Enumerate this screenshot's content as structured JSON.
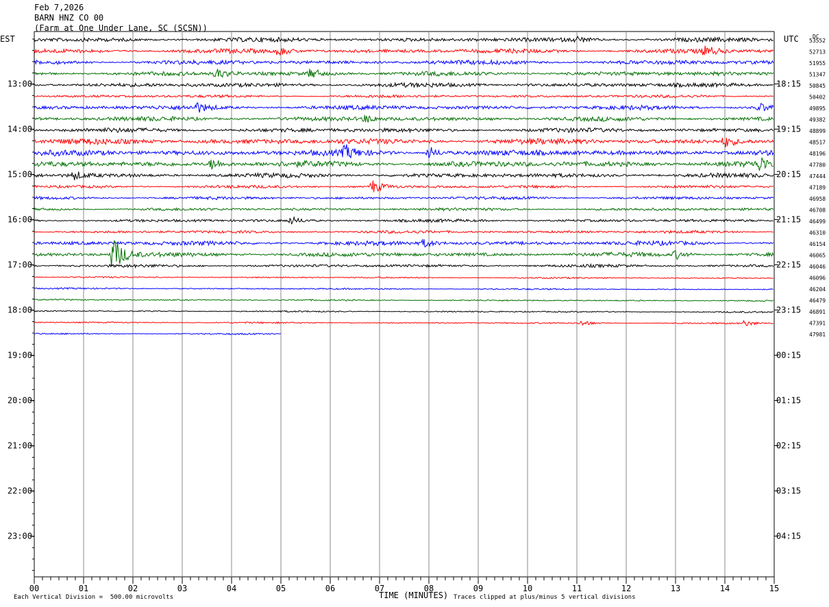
{
  "header": {
    "date": "Feb 7,2026",
    "station": "BARN HNZ CO 00",
    "location": "(Farm at One Under Lane, SC (SCSN))"
  },
  "left_axis_label": "EST",
  "right_axis_label": "UTC",
  "dc_label": "DC",
  "footer": {
    "scale_note": "Each Vertical Division =  500.00 microvolts",
    "xlabel": "TIME (MINUTES)",
    "clip_note": "Traces clipped at plus/minus 5 vertical divisions"
  },
  "chart_data": {
    "type": "line",
    "title": "BARN HNZ CO 00",
    "xlabel": "TIME (MINUTES)",
    "xlim": [
      0,
      15
    ],
    "x_ticks": [
      "00",
      "01",
      "02",
      "03",
      "04",
      "05",
      "06",
      "07",
      "08",
      "09",
      "10",
      "11",
      "12",
      "13",
      "14",
      "15"
    ],
    "grid": "vertical lines every minute",
    "colors": [
      "#000000",
      "#ff0000",
      "#0000ff",
      "#007000"
    ],
    "est_hour_labels": [
      "13:00",
      "14:00",
      "15:00",
      "16:00",
      "17:00",
      "18:00",
      "19:00",
      "20:00",
      "21:00",
      "22:00",
      "23:00"
    ],
    "utc_hour_labels": [
      "18:15",
      "19:15",
      "20:15",
      "21:15",
      "22:15",
      "23:15",
      "00:15",
      "01:15",
      "02:15",
      "03:15",
      "04:15"
    ],
    "traces_per_hour": 4,
    "dc_values": [
      "53552",
      "52713",
      "51955",
      "51347",
      "50845",
      "50402",
      "49895",
      "49382",
      "48899",
      "48517",
      "48196",
      "47780",
      "47444",
      "47189",
      "46958",
      "46708",
      "46499",
      "46310",
      "46154",
      "46065",
      "46046",
      "46096",
      "46204",
      "46479",
      "46891",
      "47391",
      "47981"
    ],
    "trace_lengths_minutes": [
      15,
      15,
      15,
      15,
      15,
      15,
      15,
      15,
      15,
      15,
      15,
      15,
      15,
      15,
      15,
      15,
      15,
      15,
      15,
      15,
      15,
      15,
      15,
      15,
      15,
      15,
      5
    ],
    "trace_amplitude": [
      3,
      3,
      3,
      3,
      3,
      2,
      3,
      3,
      3,
      4,
      4,
      4,
      3,
      2,
      2,
      2,
      2,
      2,
      3,
      3,
      2,
      1,
      1,
      1,
      1,
      1,
      1
    ],
    "events": [
      {
        "trace": 0,
        "minute": 11.0,
        "amp": 4
      },
      {
        "trace": 1,
        "minute": 4.95,
        "amp": 6
      },
      {
        "trace": 1,
        "minute": 13.6,
        "amp": 7
      },
      {
        "trace": 3,
        "minute": 3.7,
        "amp": 7
      },
      {
        "trace": 3,
        "minute": 5.6,
        "amp": 7
      },
      {
        "trace": 6,
        "minute": 3.3,
        "amp": 6
      },
      {
        "trace": 6,
        "minute": 14.7,
        "amp": 6
      },
      {
        "trace": 7,
        "minute": 6.7,
        "amp": 5
      },
      {
        "trace": 9,
        "minute": 14.0,
        "amp": 8
      },
      {
        "trace": 10,
        "minute": 6.3,
        "amp": 9
      },
      {
        "trace": 10,
        "minute": 8.0,
        "amp": 9
      },
      {
        "trace": 11,
        "minute": 3.6,
        "amp": 8
      },
      {
        "trace": 11,
        "minute": 14.7,
        "amp": 8
      },
      {
        "trace": 12,
        "minute": 0.8,
        "amp": 6
      },
      {
        "trace": 13,
        "minute": 6.85,
        "amp": 10
      },
      {
        "trace": 16,
        "minute": 5.2,
        "amp": 5
      },
      {
        "trace": 18,
        "minute": 7.9,
        "amp": 5
      },
      {
        "trace": 19,
        "minute": 1.6,
        "amp": 28
      },
      {
        "trace": 19,
        "minute": 13.0,
        "amp": 6
      },
      {
        "trace": 25,
        "minute": 11.1,
        "amp": 4
      },
      {
        "trace": 25,
        "minute": 14.4,
        "amp": 4
      }
    ]
  }
}
